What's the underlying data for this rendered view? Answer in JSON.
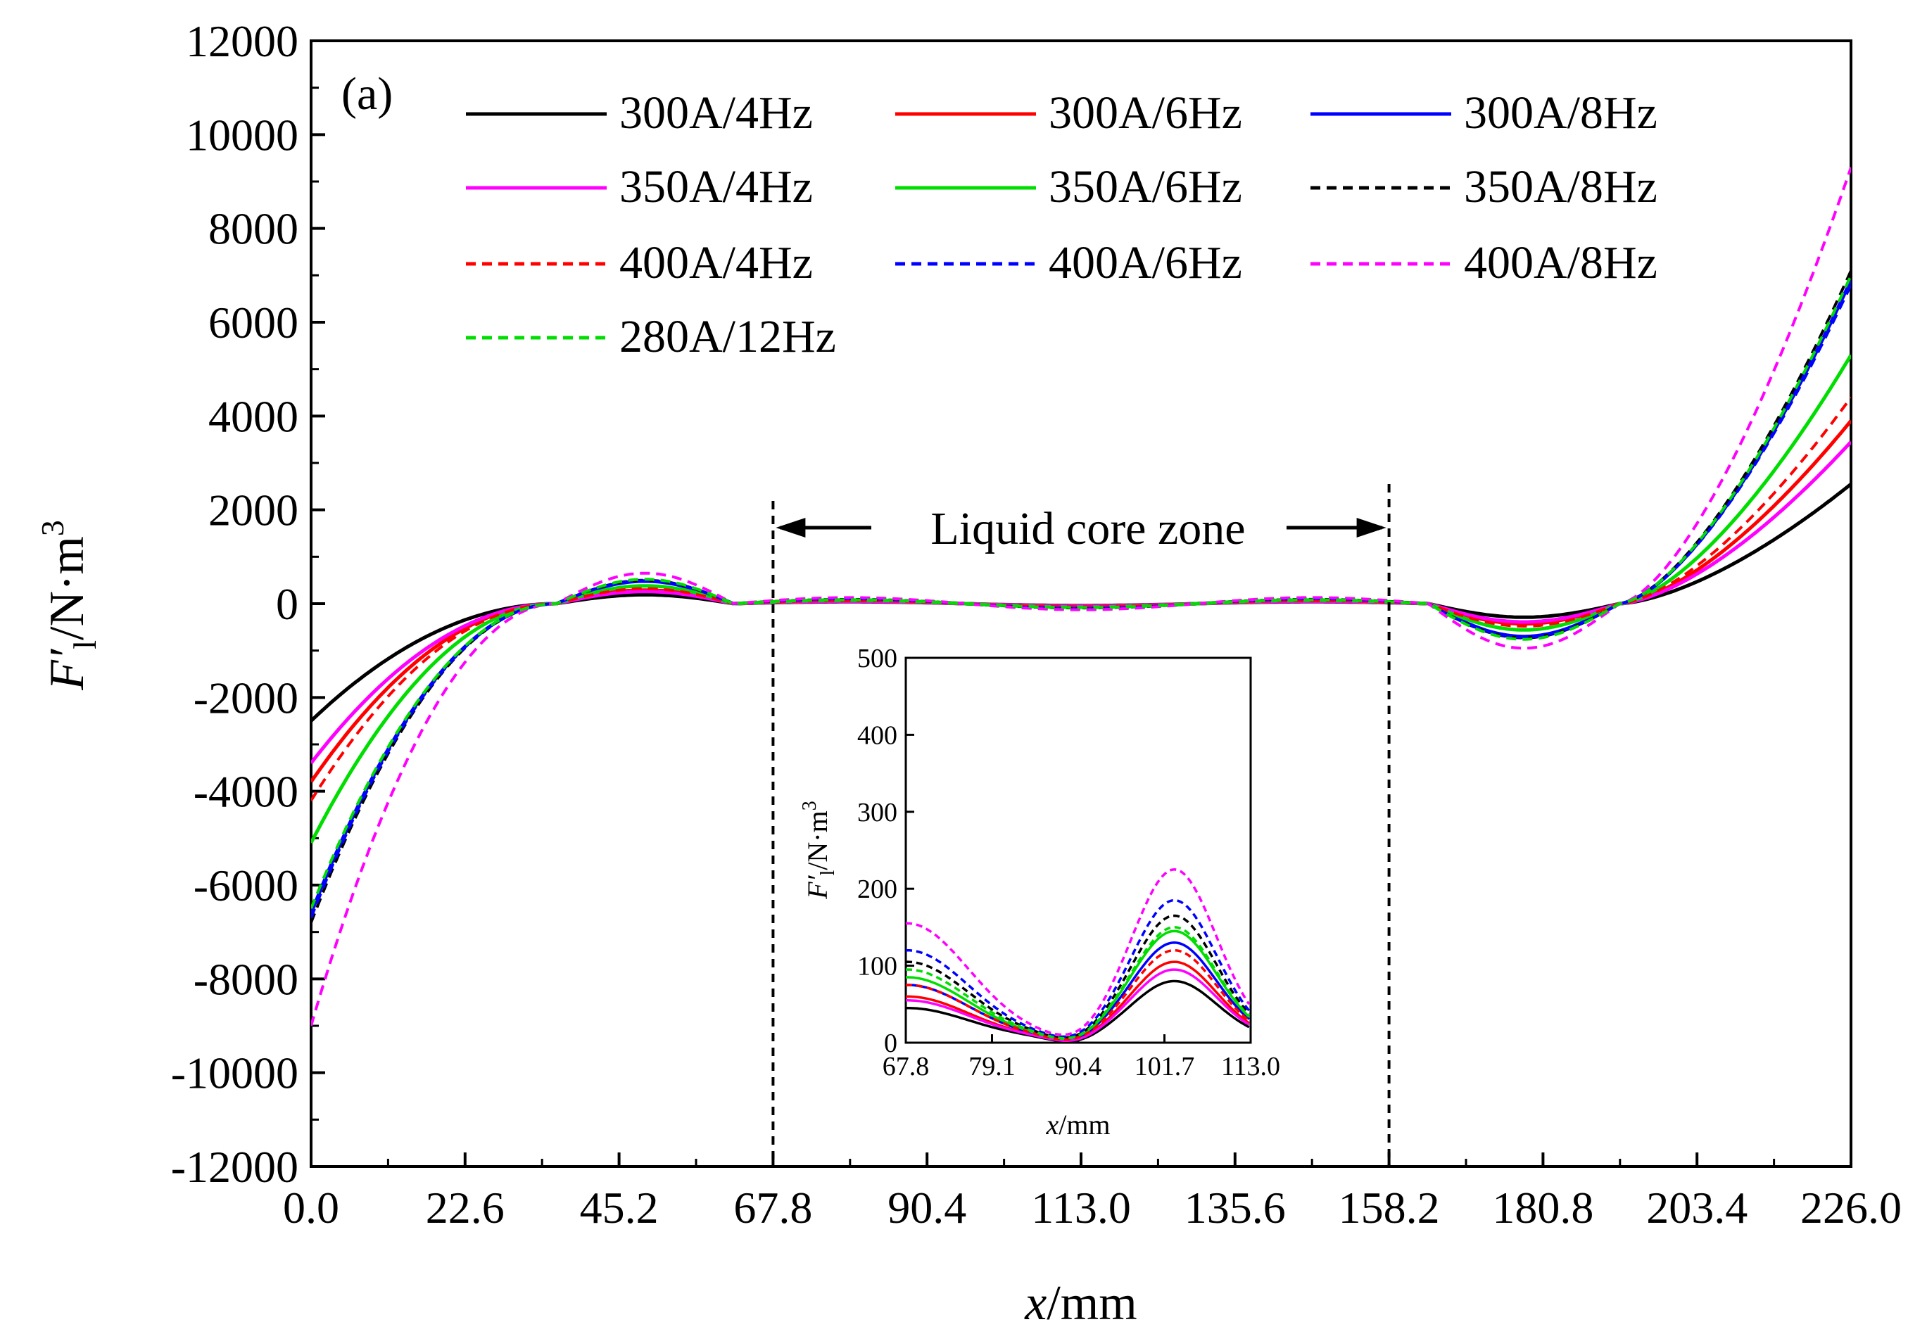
{
  "chart_data": {
    "type": "line",
    "panel_label": "(a)",
    "xlabel": {
      "var": "x",
      "unit": "/mm"
    },
    "ylabel": {
      "var": "F′",
      "sub": "l",
      "unit": "/N·m",
      "sup": "3"
    },
    "xlim": [
      0,
      226
    ],
    "ylim": [
      -12000,
      12000
    ],
    "xticks": [
      "0.0",
      "22.6",
      "45.2",
      "67.8",
      "90.4",
      "113.0",
      "135.6",
      "158.2",
      "180.8",
      "203.4",
      "226.0"
    ],
    "yticks": [
      "-12000",
      "-10000",
      "-8000",
      "-6000",
      "-4000",
      "-2000",
      "0",
      "2000",
      "4000",
      "6000",
      "8000",
      "10000",
      "12000"
    ],
    "zone": {
      "label": "Liquid core zone",
      "x_start": 67.8,
      "x_end": 158.2
    },
    "series": [
      {
        "name": "300A/4Hz",
        "color": "#000000",
        "dash": "solid",
        "left": -2500,
        "right": 2550,
        "bump1": 190,
        "dip": -290,
        "core_a": 40,
        "core_b": 75
      },
      {
        "name": "300A/6Hz",
        "color": "#ff0000",
        "dash": "solid",
        "left": -3800,
        "right": 3900,
        "bump1": 290,
        "dip": -430,
        "core_a": 55,
        "core_b": 100
      },
      {
        "name": "300A/8Hz",
        "color": "#0000ff",
        "dash": "solid",
        "left": -6600,
        "right": 6900,
        "bump1": 480,
        "dip": -700,
        "core_a": 70,
        "core_b": 125
      },
      {
        "name": "350A/4Hz",
        "color": "#ff00ff",
        "dash": "solid",
        "left": -3400,
        "right": 3450,
        "bump1": 260,
        "dip": -390,
        "core_a": 50,
        "core_b": 90
      },
      {
        "name": "350A/6Hz",
        "color": "#00dd00",
        "dash": "solid",
        "left": -5100,
        "right": 5300,
        "bump1": 380,
        "dip": -560,
        "core_a": 80,
        "core_b": 140
      },
      {
        "name": "350A/8Hz",
        "color": "#000000",
        "dash": "dashed",
        "left": -6800,
        "right": 7100,
        "bump1": 500,
        "dip": -730,
        "core_a": 100,
        "core_b": 160
      },
      {
        "name": "400A/4Hz",
        "color": "#ff0000",
        "dash": "dashed",
        "left": -4200,
        "right": 4400,
        "bump1": 320,
        "dip": -480,
        "core_a": 70,
        "core_b": 115
      },
      {
        "name": "400A/6Hz",
        "color": "#0000ff",
        "dash": "dashed",
        "left": -6700,
        "right": 6800,
        "bump1": 490,
        "dip": -720,
        "core_a": 115,
        "core_b": 180
      },
      {
        "name": "400A/8Hz",
        "color": "#ff00ff",
        "dash": "dashed",
        "left": -9000,
        "right": 9300,
        "bump1": 650,
        "dip": -950,
        "core_a": 150,
        "core_b": 220
      },
      {
        "name": "280A/12Hz",
        "color": "#00dd00",
        "dash": "dashed",
        "left": -6500,
        "right": 7000,
        "bump1": 520,
        "dip": -760,
        "core_a": 90,
        "core_b": 145
      }
    ],
    "inset": {
      "xlabel": {
        "var": "x",
        "unit": "/mm"
      },
      "ylabel": {
        "var": "F′",
        "sub": "l",
        "unit": "/N·m",
        "sup": "3"
      },
      "xlim": [
        67.8,
        113.0
      ],
      "ylim": [
        0,
        500
      ],
      "xticks": [
        "67.8",
        "79.1",
        "90.4",
        "101.7",
        "113.0"
      ],
      "yticks": [
        "0",
        "100",
        "200",
        "300",
        "400",
        "500"
      ]
    }
  }
}
